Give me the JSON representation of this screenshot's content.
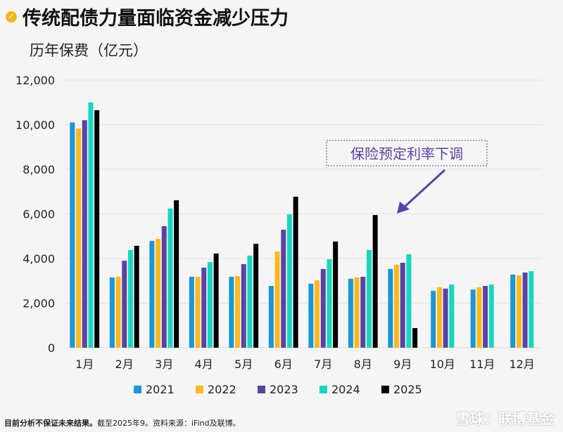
{
  "header": {
    "title": "传统配债力量面临资金减少压力",
    "subtitle": "历年保费（亿元）",
    "icon": "check-circle-icon"
  },
  "chart_data": {
    "type": "bar",
    "title": "传统配债力量面临资金减少压力",
    "ylabel": "历年保费（亿元）",
    "ylim": [
      0,
      12000
    ],
    "yticks": [
      0,
      2000,
      4000,
      6000,
      8000,
      10000,
      12000
    ],
    "ytick_labels": [
      "0",
      "2,000",
      "4,000",
      "6,000",
      "8,000",
      "10,000",
      "12,000"
    ],
    "grid": true,
    "legend": "bottom",
    "categories": [
      "1月",
      "2月",
      "3月",
      "4月",
      "5月",
      "6月",
      "7月",
      "8月",
      "9月",
      "10月",
      "11月",
      "12月"
    ],
    "series": [
      {
        "name": "2021",
        "color": "#1b96d6",
        "values": [
          10100,
          3150,
          4790,
          3180,
          3180,
          2770,
          2870,
          3090,
          3530,
          2550,
          2610,
          3280
        ]
      },
      {
        "name": "2022",
        "color": "#fbb91c",
        "values": [
          9830,
          3180,
          4880,
          3180,
          3210,
          4310,
          3020,
          3150,
          3720,
          2710,
          2710,
          3240
        ]
      },
      {
        "name": "2023",
        "color": "#5a43a4",
        "values": [
          10200,
          3900,
          5450,
          3590,
          3750,
          5290,
          3530,
          3180,
          3810,
          2650,
          2770,
          3370
        ]
      },
      {
        "name": "2024",
        "color": "#17d6c0",
        "values": [
          11000,
          4380,
          6240,
          3840,
          4130,
          5980,
          3970,
          4380,
          4190,
          2830,
          2830,
          3430
        ]
      },
      {
        "name": "2025",
        "color": "#000000",
        "values": [
          10650,
          4570,
          6610,
          4220,
          4660,
          6770,
          4760,
          5950,
          880,
          null,
          null,
          null
        ]
      }
    ],
    "annotation": {
      "text": "保险预定利率下调",
      "arrow_color": "#5a43a4",
      "points_to": "8月 2025"
    }
  },
  "footer": {
    "bold": "目前分析不保证未来结果。",
    "note": "截至2025年9。资料来源：iFind及联博。"
  },
  "watermark": "雪球：联博基金"
}
